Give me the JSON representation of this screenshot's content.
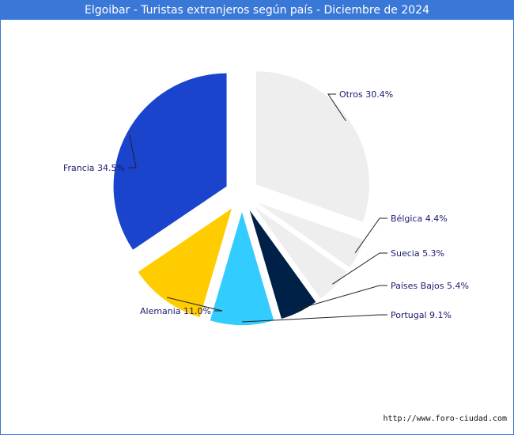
{
  "chart_data": {
    "type": "pie",
    "title": "Elgoibar - Turistas extranjeros según país - Diciembre de 2024",
    "slices": [
      {
        "name": "Otros",
        "value": 30.4,
        "label": "Otros 30.4%",
        "color": "#eeeeee"
      },
      {
        "name": "Bélgica",
        "value": 4.4,
        "label": "Bélgica 4.4%",
        "color": "#eeeeee"
      },
      {
        "name": "Suecia",
        "value": 5.3,
        "label": "Suecia 5.3%",
        "color": "#eeeeee"
      },
      {
        "name": "Países Bajos",
        "value": 5.4,
        "label": "Países Bajos 5.4%",
        "color": "#002147"
      },
      {
        "name": "Portugal",
        "value": 9.1,
        "label": "Portugal 9.1%",
        "color": "#33ccff"
      },
      {
        "name": "Alemania",
        "value": 11.0,
        "label": "Alemania 11.0%",
        "color": "#ffcc00"
      },
      {
        "name": "Francia",
        "value": 34.5,
        "label": "Francia 34.5%",
        "color": "#1a44cc"
      }
    ]
  },
  "footer": {
    "url": "http://www.foro-ciudad.com"
  }
}
